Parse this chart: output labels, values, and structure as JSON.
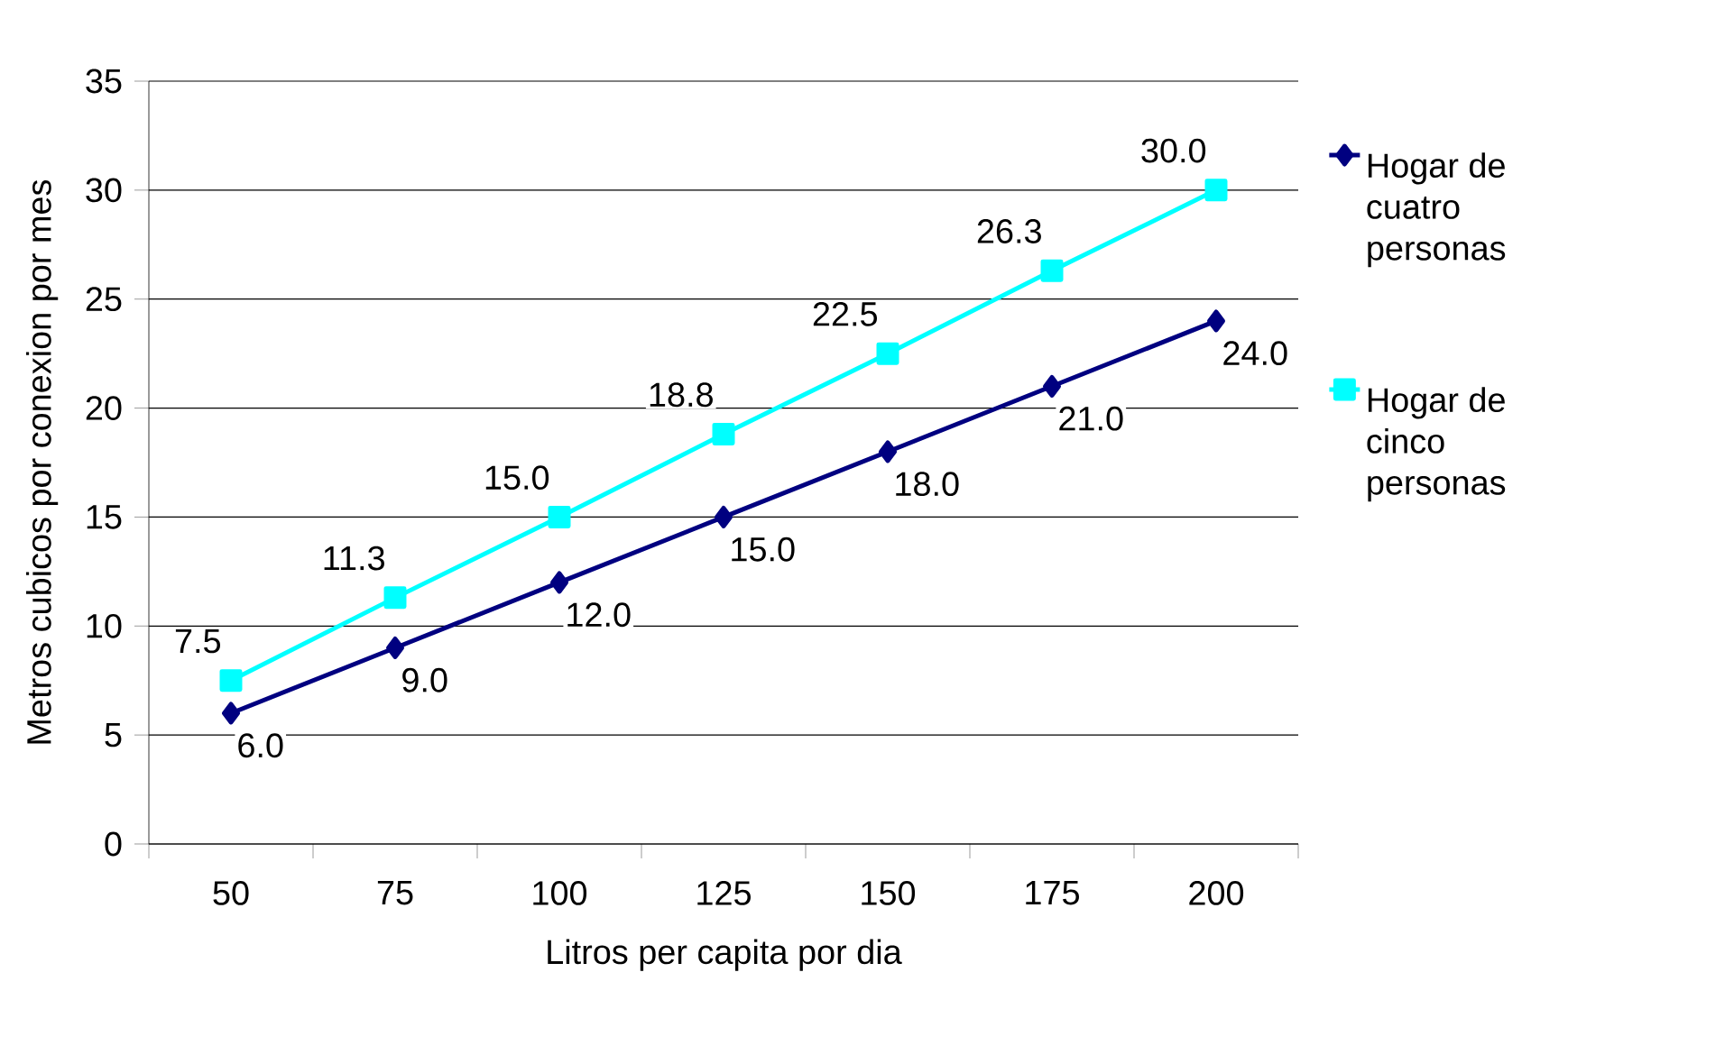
{
  "chart_data": {
    "type": "line",
    "xlabel": "Litros per capita por dia",
    "ylabel": "Metros cubicos por conexion por mes",
    "categories": [
      "50",
      "75",
      "100",
      "125",
      "150",
      "175",
      "200"
    ],
    "series": [
      {
        "name": "Hogar de cuatro personas",
        "color": "#000080",
        "marker": "diamond",
        "values": [
          6.0,
          9.0,
          12.0,
          15.0,
          18.0,
          21.0,
          24.0
        ],
        "value_labels": [
          "6.0",
          "9.0",
          "12.0",
          "15.0",
          "18.0",
          "21.0",
          "24.0"
        ]
      },
      {
        "name": "Hogar de cinco personas",
        "color": "#00ffff",
        "marker": "square",
        "values": [
          7.5,
          11.3,
          15.0,
          18.8,
          22.5,
          26.3,
          30.0
        ],
        "value_labels": [
          "7.5",
          "11.3",
          "15.0",
          "18.8",
          "22.5",
          "26.3",
          "30.0"
        ]
      }
    ],
    "ylim": [
      0,
      35
    ],
    "yticks": [
      0,
      5,
      10,
      15,
      20,
      25,
      30,
      35
    ],
    "grid": "y",
    "legend": "right",
    "line_style": "solid"
  }
}
